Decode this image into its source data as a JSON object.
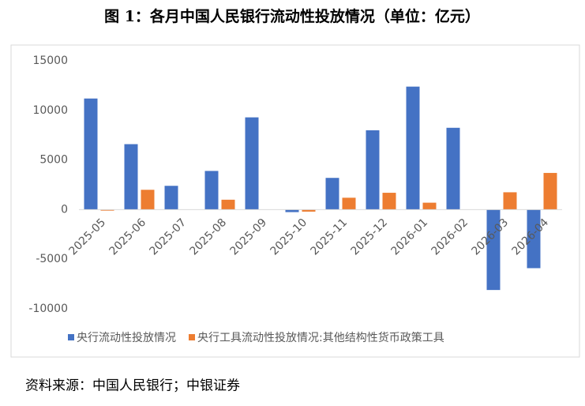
{
  "title": "图 1：各月中国人民银行流动性投放情况（单位：亿元）",
  "source": "资料来源：中国人民银行；中银证券",
  "chart_data": {
    "type": "bar",
    "categories": [
      "2025-05",
      "2025-06",
      "2025-07",
      "2025-08",
      "2025-09",
      "2025-10",
      "2025-11",
      "2025-12",
      "2026-01",
      "2026-02",
      "2026-03",
      "2026-04"
    ],
    "series": [
      {
        "name": "央行流动性投放情况",
        "color": "#4472c4",
        "values": [
          11200,
          6600,
          2400,
          3900,
          9300,
          -250,
          3200,
          8000,
          12400,
          8250,
          -8100,
          -5900
        ]
      },
      {
        "name": "央行工具流动性投放情况:其他结构性货币政策工具",
        "color": "#ed7d31",
        "values": [
          -100,
          2000,
          null,
          1000,
          null,
          -200,
          1200,
          1700,
          700,
          null,
          1750,
          3700
        ]
      }
    ],
    "ylim": [
      -10000,
      15000
    ],
    "yticks": [
      -10000,
      -5000,
      0,
      5000,
      10000,
      15000
    ],
    "grid": false,
    "legend": "bottom"
  }
}
